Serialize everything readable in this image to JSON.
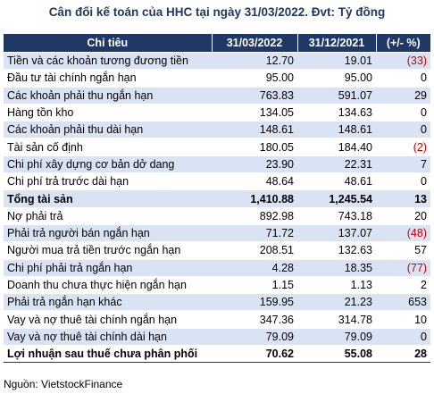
{
  "title": "Cân đối kế toán của HHC tại ngày 31/03/2022. Đvt: Tỷ đồng",
  "columns": [
    "Chỉ tiêu",
    "31/03/2022",
    "31/12/2021",
    "(+/- %)"
  ],
  "rows": [
    {
      "label": "Tiền và các khoản tương đương tiền",
      "v1": "12.70",
      "v2": "19.01",
      "chg": "(33)",
      "neg": true
    },
    {
      "label": "Đầu tư tài chính ngắn hạn",
      "v1": "95.00",
      "v2": "95.00",
      "chg": "0",
      "neg": false
    },
    {
      "label": "Các khoản phải thu ngắn hạn",
      "v1": "763.83",
      "v2": "591.07",
      "chg": "29",
      "neg": false
    },
    {
      "label": "Hàng tồn kho",
      "v1": "134.05",
      "v2": "134.63",
      "chg": "0",
      "neg": false
    },
    {
      "label": "Các khoản phải thu dài hạn",
      "v1": "148.61",
      "v2": "148.61",
      "chg": "0",
      "neg": false
    },
    {
      "label": "Tài sản cố định",
      "v1": "180.05",
      "v2": "184.40",
      "chg": "(2)",
      "neg": true
    },
    {
      "label": "Chi phí xây dựng cơ bản dở dang",
      "v1": "23.90",
      "v2": "22.31",
      "chg": "7",
      "neg": false
    },
    {
      "label": "Chi phí trả trước dài hạn",
      "v1": "48.64",
      "v2": "48.61",
      "chg": "0",
      "neg": false
    },
    {
      "label": "Tổng tài sản",
      "v1": "1,410.88",
      "v2": "1,245.54",
      "chg": "13",
      "neg": false,
      "bold": true
    },
    {
      "label": "Nợ phải trả",
      "v1": "892.98",
      "v2": "743.18",
      "chg": "20",
      "neg": false
    },
    {
      "label": "Phải trả người bán ngắn hạn",
      "v1": "71.72",
      "v2": "137.07",
      "chg": "(48)",
      "neg": true
    },
    {
      "label": "Người mua trả tiền trước ngắn hạn",
      "v1": "208.51",
      "v2": "132.63",
      "chg": "57",
      "neg": false
    },
    {
      "label": "Chi phí phải trả ngắn hạn",
      "v1": "4.28",
      "v2": "18.35",
      "chg": "(77)",
      "neg": true
    },
    {
      "label": "Doanh thu chưa thực hiện ngắn hạn",
      "v1": "1.15",
      "v2": "1.13",
      "chg": "2",
      "neg": false
    },
    {
      "label": "Phải trả ngắn hạn khác",
      "v1": "159.95",
      "v2": "21.23",
      "chg": "653",
      "neg": false
    },
    {
      "label": "Vay và nợ thuê tài chính ngắn hạn",
      "v1": "347.36",
      "v2": "314.78",
      "chg": "10",
      "neg": false
    },
    {
      "label": "Vay và nợ thuê tài chính dài hạn",
      "v1": "79.09",
      "v2": "79.09",
      "chg": "0",
      "neg": false
    },
    {
      "label": "Lợi nhuận sau thuế chưa phân phối",
      "v1": "70.62",
      "v2": "55.08",
      "chg": "28",
      "neg": false,
      "bold": true
    }
  ],
  "source": "Nguồn: VietstockFinance",
  "colors": {
    "header_bg": "#1f3864",
    "header_text": "#ffffff",
    "band": "#dae3f3",
    "negative": "#c00000",
    "title": "#1f3864"
  }
}
